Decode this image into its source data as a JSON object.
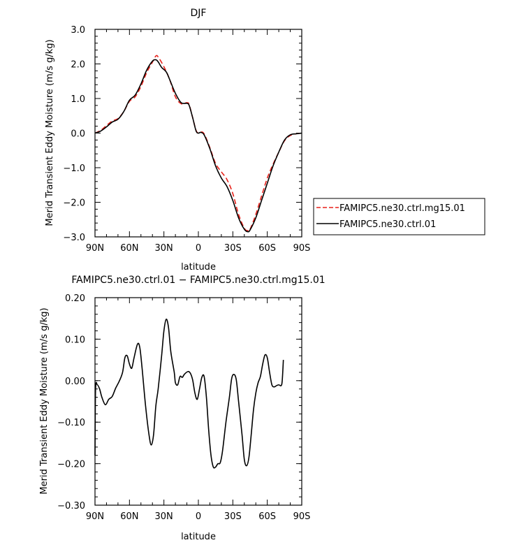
{
  "chart_data": [
    {
      "type": "line",
      "title": "DJF",
      "xlabel": "latitude",
      "ylabel": "Merid Transient Eddy Moisture (m/s g/kg)",
      "xlim": [
        90,
        -90
      ],
      "ylim": [
        -3.0,
        3.0
      ],
      "x_ticks": [
        90,
        60,
        30,
        0,
        -30,
        -60,
        -90
      ],
      "x_tick_labels": [
        "90N",
        "60N",
        "30N",
        "0",
        "30S",
        "60S",
        "90S"
      ],
      "y_ticks": [
        3.0,
        2.0,
        1.0,
        0.0,
        -1.0,
        -2.0,
        -3.0
      ],
      "y_tick_labels": [
        "3.0",
        "2.0",
        "1.0",
        "0.0",
        "−1.0",
        "−2.0",
        "−3.0"
      ],
      "legend_position": "right",
      "series": [
        {
          "name": "FAMIPC5.ne30.ctrl.mg15.01",
          "color": "#e8211a",
          "dash": "dashed",
          "points": [
            [
              90,
              0.0
            ],
            [
              85,
              0.08
            ],
            [
              80,
              0.22
            ],
            [
              75,
              0.35
            ],
            [
              70,
              0.42
            ],
            [
              65,
              0.62
            ],
            [
              60,
              0.92
            ],
            [
              55,
              1.05
            ],
            [
              50,
              1.35
            ],
            [
              45,
              1.75
            ],
            [
              40,
              2.05
            ],
            [
              37,
              2.23
            ],
            [
              35,
              2.2
            ],
            [
              30,
              1.92
            ],
            [
              25,
              1.55
            ],
            [
              20,
              1.05
            ],
            [
              15,
              0.85
            ],
            [
              10,
              0.88
            ],
            [
              8,
              0.82
            ],
            [
              5,
              0.45
            ],
            [
              2,
              0.08
            ],
            [
              0,
              0.0
            ],
            [
              -2,
              0.03
            ],
            [
              -5,
              -0.02
            ],
            [
              -10,
              -0.42
            ],
            [
              -15,
              -0.88
            ],
            [
              -20,
              -1.12
            ],
            [
              -25,
              -1.35
            ],
            [
              -30,
              -1.75
            ],
            [
              -35,
              -2.35
            ],
            [
              -40,
              -2.75
            ],
            [
              -43,
              -2.82
            ],
            [
              -45,
              -2.78
            ],
            [
              -50,
              -2.35
            ],
            [
              -55,
              -1.82
            ],
            [
              -60,
              -1.3
            ],
            [
              -65,
              -0.9
            ],
            [
              -70,
              -0.55
            ],
            [
              -75,
              -0.22
            ],
            [
              -80,
              -0.07
            ],
            [
              -85,
              -0.02
            ],
            [
              -90,
              0.0
            ]
          ]
        },
        {
          "name": "FAMIPC5.ne30.ctrl.01",
          "color": "#000000",
          "dash": "solid",
          "points": [
            [
              90,
              0.0
            ],
            [
              85,
              0.06
            ],
            [
              80,
              0.18
            ],
            [
              75,
              0.32
            ],
            [
              70,
              0.4
            ],
            [
              65,
              0.62
            ],
            [
              60,
              0.95
            ],
            [
              55,
              1.1
            ],
            [
              50,
              1.42
            ],
            [
              45,
              1.82
            ],
            [
              40,
              2.08
            ],
            [
              37,
              2.12
            ],
            [
              35,
              2.06
            ],
            [
              32,
              1.9
            ],
            [
              28,
              1.77
            ],
            [
              25,
              1.55
            ],
            [
              20,
              1.15
            ],
            [
              15,
              0.88
            ],
            [
              10,
              0.86
            ],
            [
              8,
              0.8
            ],
            [
              5,
              0.45
            ],
            [
              2,
              0.06
            ],
            [
              0,
              0.0
            ],
            [
              -2,
              0.02
            ],
            [
              -5,
              -0.05
            ],
            [
              -10,
              -0.45
            ],
            [
              -15,
              -0.95
            ],
            [
              -20,
              -1.3
            ],
            [
              -25,
              -1.55
            ],
            [
              -30,
              -1.95
            ],
            [
              -35,
              -2.45
            ],
            [
              -40,
              -2.78
            ],
            [
              -43,
              -2.85
            ],
            [
              -45,
              -2.8
            ],
            [
              -50,
              -2.45
            ],
            [
              -55,
              -1.95
            ],
            [
              -60,
              -1.45
            ],
            [
              -65,
              -0.95
            ],
            [
              -70,
              -0.55
            ],
            [
              -75,
              -0.2
            ],
            [
              -80,
              -0.05
            ],
            [
              -85,
              -0.02
            ],
            [
              -90,
              0.0
            ]
          ]
        }
      ]
    },
    {
      "type": "line",
      "title": "FAMIPC5.ne30.ctrl.01 − FAMIPC5.ne30.ctrl.mg15.01",
      "xlabel": "latitude",
      "ylabel": "Merid Transient Eddy Moisture (m/s g/kg)",
      "xlim": [
        90,
        -90
      ],
      "ylim": [
        -0.3,
        0.2
      ],
      "x_ticks": [
        90,
        60,
        30,
        0,
        -30,
        -60,
        -90
      ],
      "x_tick_labels": [
        "90N",
        "60N",
        "30N",
        "0",
        "30S",
        "60S",
        "90S"
      ],
      "y_ticks": [
        0.2,
        0.1,
        0.0,
        -0.1,
        -0.2,
        -0.3
      ],
      "y_tick_labels": [
        "0.20",
        "0.10",
        "0.00",
        "−0.10",
        "−0.20",
        "−0.30"
      ],
      "series": [
        {
          "name": "",
          "color": "#000000",
          "dash": "solid",
          "points": [
            [
              90,
              -0.18
            ],
            [
              89.5,
              -0.02
            ],
            [
              88,
              -0.01
            ],
            [
              86,
              -0.02
            ],
            [
              84,
              -0.04
            ],
            [
              81,
              -0.058
            ],
            [
              78,
              -0.045
            ],
            [
              75,
              -0.038
            ],
            [
              72,
              -0.018
            ],
            [
              69,
              -0.002
            ],
            [
              66,
              0.02
            ],
            [
              64,
              0.055
            ],
            [
              62,
              0.06
            ],
            [
              60,
              0.04
            ],
            [
              58,
              0.03
            ],
            [
              56,
              0.055
            ],
            [
              53,
              0.088
            ],
            [
              51,
              0.08
            ],
            [
              49,
              0.03
            ],
            [
              46,
              -0.06
            ],
            [
              43,
              -0.13
            ],
            [
              41,
              -0.155
            ],
            [
              39,
              -0.13
            ],
            [
              37,
              -0.06
            ],
            [
              35,
              -0.02
            ],
            [
              32,
              0.06
            ],
            [
              30,
              0.12
            ],
            [
              28,
              0.148
            ],
            [
              26,
              0.128
            ],
            [
              24,
              0.07
            ],
            [
              21,
              0.02
            ],
            [
              20,
              -0.005
            ],
            [
              18,
              -0.01
            ],
            [
              16,
              0.01
            ],
            [
              14,
              0.008
            ],
            [
              12,
              0.016
            ],
            [
              9,
              0.022
            ],
            [
              7,
              0.018
            ],
            [
              5,
              0.002
            ],
            [
              3,
              -0.03
            ],
            [
              1,
              -0.045
            ],
            [
              -1,
              -0.02
            ],
            [
              -3,
              0.008
            ],
            [
              -5,
              0.01
            ],
            [
              -7,
              -0.04
            ],
            [
              -9,
              -0.12
            ],
            [
              -11,
              -0.18
            ],
            [
              -13,
              -0.208
            ],
            [
              -15,
              -0.208
            ],
            [
              -17,
              -0.2
            ],
            [
              -19,
              -0.198
            ],
            [
              -21,
              -0.17
            ],
            [
              -24,
              -0.1
            ],
            [
              -27,
              -0.04
            ],
            [
              -29,
              0.005
            ],
            [
              -31,
              0.015
            ],
            [
              -33,
              0.002
            ],
            [
              -35,
              -0.05
            ],
            [
              -38,
              -0.13
            ],
            [
              -40,
              -0.19
            ],
            [
              -42,
              -0.205
            ],
            [
              -44,
              -0.185
            ],
            [
              -46,
              -0.13
            ],
            [
              -48,
              -0.07
            ],
            [
              -50,
              -0.03
            ],
            [
              -52,
              -0.005
            ],
            [
              -54,
              0.01
            ],
            [
              -56,
              0.04
            ],
            [
              -58,
              0.062
            ],
            [
              -60,
              0.055
            ],
            [
              -62,
              0.02
            ],
            [
              -64,
              -0.01
            ],
            [
              -66,
              -0.015
            ],
            [
              -68,
              -0.012
            ],
            [
              -70,
              -0.01
            ],
            [
              -72,
              -0.012
            ],
            [
              -73,
              0.0
            ],
            [
              -74,
              0.05
            ]
          ]
        }
      ]
    }
  ]
}
